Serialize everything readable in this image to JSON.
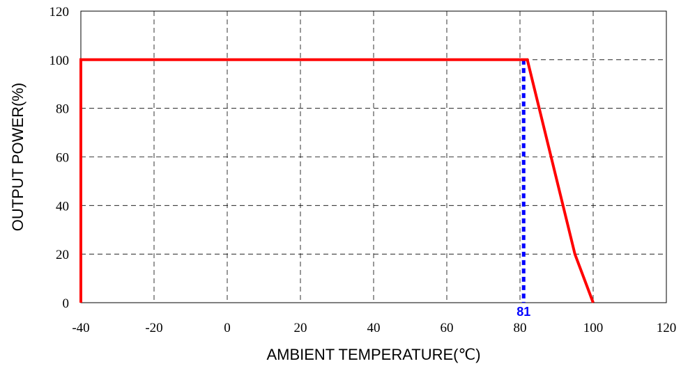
{
  "chart_data": {
    "type": "line",
    "title": "",
    "xlabel": "AMBIENT TEMPERATURE(℃)",
    "ylabel": "OUTPUT POWER(%)",
    "xlim": [
      -40,
      120
    ],
    "ylim": [
      0,
      120
    ],
    "x_ticks": [
      -40,
      -20,
      0,
      20,
      40,
      60,
      80,
      100,
      120
    ],
    "y_ticks": [
      0,
      20,
      40,
      60,
      80,
      100,
      120
    ],
    "grid": true,
    "series": [
      {
        "color": "#ff0000",
        "points": [
          [
            -40,
            0
          ],
          [
            -40,
            100
          ],
          [
            82,
            100
          ],
          [
            95,
            20
          ],
          [
            100,
            0
          ]
        ]
      }
    ],
    "annotations": [
      {
        "text": "81",
        "x": 81,
        "color": "#0000ff",
        "style": "dashed-vertical-line"
      }
    ]
  }
}
